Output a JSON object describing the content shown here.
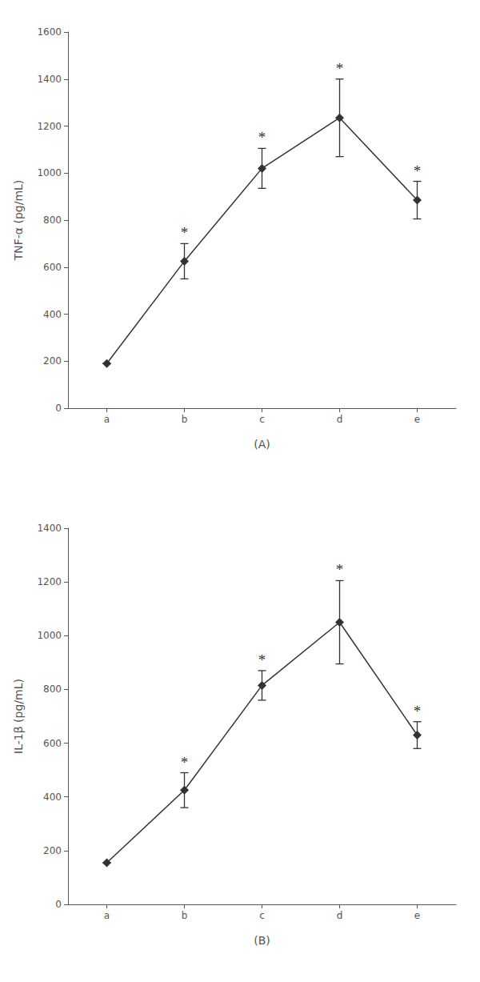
{
  "chart_data": [
    {
      "type": "line",
      "categories": [
        "a",
        "b",
        "c",
        "d",
        "e"
      ],
      "values": [
        190,
        625,
        1020,
        1235,
        885
      ],
      "errors": [
        0,
        75,
        85,
        165,
        80
      ],
      "y_label": "TNF-α (pg/mL)",
      "x_label": "(A)",
      "ylim": [
        0,
        1600
      ],
      "yticks": [
        0,
        200,
        400,
        600,
        800,
        1000,
        1200,
        1400,
        1600
      ],
      "color": "#333333",
      "marker": "diamond",
      "grid": false,
      "annotations": [
        {
          "index": 1,
          "text": "*"
        },
        {
          "index": 2,
          "text": "*"
        },
        {
          "index": 3,
          "text": "*"
        },
        {
          "index": 4,
          "text": "*"
        }
      ]
    },
    {
      "type": "line",
      "categories": [
        "a",
        "b",
        "c",
        "d",
        "e"
      ],
      "values": [
        155,
        425,
        815,
        1050,
        630
      ],
      "errors": [
        0,
        65,
        55,
        155,
        50
      ],
      "y_label": "IL-1β (pg/mL)",
      "x_label": "(B)",
      "ylim": [
        0,
        1400
      ],
      "yticks": [
        0,
        200,
        400,
        600,
        800,
        1000,
        1200,
        1400
      ],
      "color": "#333333",
      "marker": "diamond",
      "grid": false,
      "annotations": [
        {
          "index": 1,
          "text": "*"
        },
        {
          "index": 2,
          "text": "*"
        },
        {
          "index": 3,
          "text": "*"
        },
        {
          "index": 4,
          "text": "*"
        }
      ]
    }
  ]
}
